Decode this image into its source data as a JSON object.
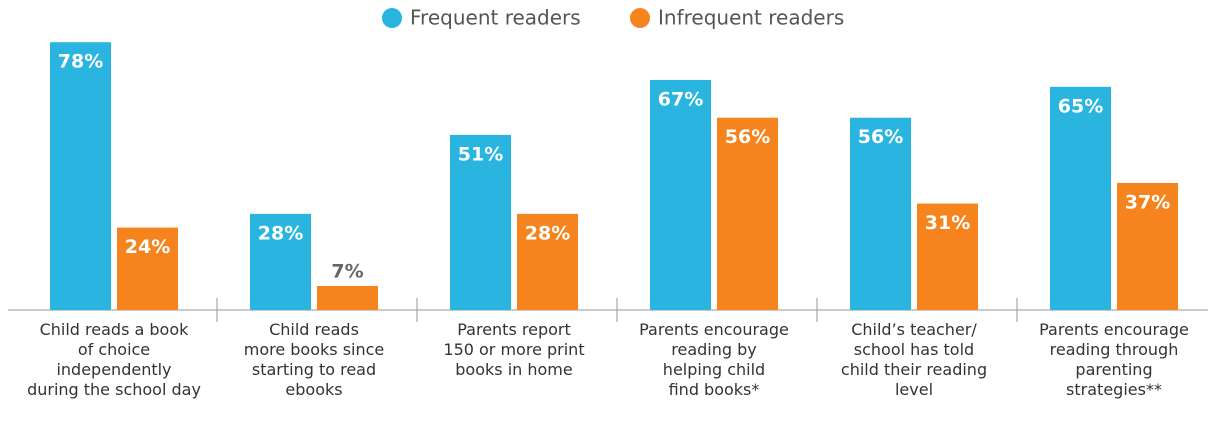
{
  "chart_data": {
    "type": "bar",
    "categories": [
      "Child reads a book\nof choice\nindependently\nduring the school day",
      "Child reads\nmore books since\nstarting to read\nebooks",
      "Parents report\n150 or more print\nbooks in home",
      "Parents encourage\nreading by\nhelping child\nfind books*",
      "Child’s teacher/\nschool has told\nchild their reading\nlevel",
      "Parents encourage\nreading through\nparenting\nstrategies**"
    ],
    "series": [
      {
        "name": "Frequent readers",
        "color": "#29b5e0",
        "values": [
          78,
          28,
          51,
          67,
          56,
          65
        ],
        "value_labels": [
          "78%",
          "28%",
          "51%",
          "67%",
          "56%",
          "65%"
        ]
      },
      {
        "name": "Infrequent readers",
        "color": "#f5841f",
        "values": [
          24,
          7,
          28,
          56,
          31,
          37
        ],
        "value_labels": [
          "24%",
          "7%",
          "28%",
          "56%",
          "31%",
          "37%"
        ]
      }
    ],
    "ylim": [
      0,
      90
    ],
    "legend": "top"
  }
}
